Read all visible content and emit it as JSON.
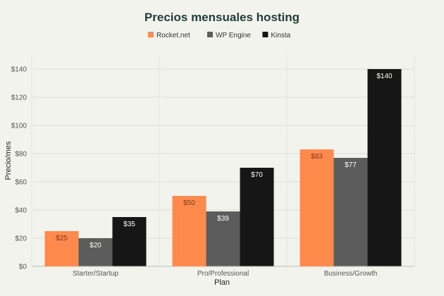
{
  "chart_data": {
    "type": "bar",
    "title": "Precios mensuales hosting",
    "xlabel": "Plan",
    "ylabel": "Precio/mes",
    "categories": [
      "Starter/Startup",
      "Pro/Professional",
      "Business/Growth"
    ],
    "series": [
      {
        "name": "Rocket.net",
        "color": "#ff8a4c",
        "labelColor": "#7a3a1a",
        "values": [
          25,
          50,
          83
        ],
        "labels": [
          "$25",
          "$50",
          "$83"
        ]
      },
      {
        "name": "WP Engine",
        "color": "#5c5c5c",
        "labelColor": "#ffffff",
        "values": [
          20,
          39,
          77
        ],
        "labels": [
          "$20",
          "$39",
          "$77"
        ]
      },
      {
        "name": "Kinsta",
        "color": "#161616",
        "labelColor": "#ffffff",
        "values": [
          35,
          70,
          140
        ],
        "labels": [
          "$35",
          "$70",
          "$140"
        ]
      }
    ],
    "ylim": [
      0,
      150
    ],
    "yticks": [
      0,
      20,
      40,
      60,
      80,
      100,
      120,
      140
    ],
    "ytick_labels": [
      "$0",
      "$20",
      "$40",
      "$60",
      "$80",
      "$100",
      "$120",
      "$140"
    ],
    "grid": true,
    "legend_position": "top-center"
  }
}
